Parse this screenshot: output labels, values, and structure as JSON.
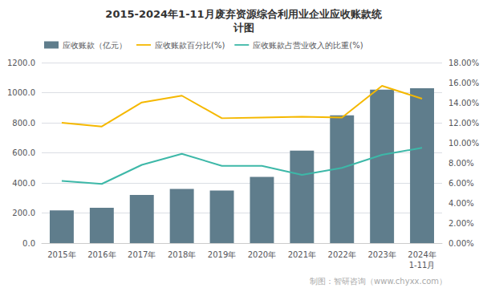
{
  "chart_data": {
    "type": "bar",
    "title": "2015-2024年1-11月废弃资源综合利用业企业应收账款统\n计图",
    "categories": [
      "2015年",
      "2016年",
      "2017年",
      "2018年",
      "2019年",
      "2020年",
      "2021年",
      "2022年",
      "2023年",
      "2024年\n1-11月"
    ],
    "series": [
      {
        "name": "应收账款（亿元）",
        "type": "bar",
        "color": "#5f7d8c",
        "values": [
          218,
          235,
          320,
          360,
          350,
          440,
          615,
          850,
          1020,
          1030
        ]
      },
      {
        "name": "应收账款百分比(%)",
        "type": "line",
        "color": "#f5b800",
        "values": [
          800,
          775,
          935,
          980,
          830,
          835,
          840,
          835,
          1045,
          960
        ]
      },
      {
        "name": "应收账款占营业收入的比重(%)",
        "type": "line",
        "color": "#3db8a8",
        "axis": "y2",
        "values": [
          6.2,
          5.9,
          7.8,
          8.9,
          7.7,
          7.7,
          6.8,
          7.5,
          8.8,
          9.5
        ]
      }
    ],
    "ylim": [
      0,
      1200
    ],
    "yticks": [
      {
        "value": 0,
        "label": "0.0"
      },
      {
        "value": 200,
        "label": "200.0"
      },
      {
        "value": 400,
        "label": "400.0"
      },
      {
        "value": 600,
        "label": "600.0"
      },
      {
        "value": 800,
        "label": "800.0"
      },
      {
        "value": 1000,
        "label": "1000.0"
      },
      {
        "value": 1200,
        "label": "1200.0"
      }
    ],
    "y2lim": [
      0,
      18
    ],
    "y2ticks": [
      {
        "value": 0,
        "label": "0.00%"
      },
      {
        "value": 2,
        "label": "2.00%"
      },
      {
        "value": 4,
        "label": "4.00%"
      },
      {
        "value": 6,
        "label": "6.00%"
      },
      {
        "value": 8,
        "label": "8.00%"
      },
      {
        "value": 10,
        "label": "10.00%"
      },
      {
        "value": 12,
        "label": "12.00%"
      },
      {
        "value": 14,
        "label": "14.00%"
      },
      {
        "value": 16,
        "label": "16.00%"
      },
      {
        "value": 18,
        "label": "18.00%"
      }
    ],
    "grid": true,
    "legend": "top",
    "annotations": [
      "制图：智研咨询（www.chyxx.com）"
    ]
  }
}
